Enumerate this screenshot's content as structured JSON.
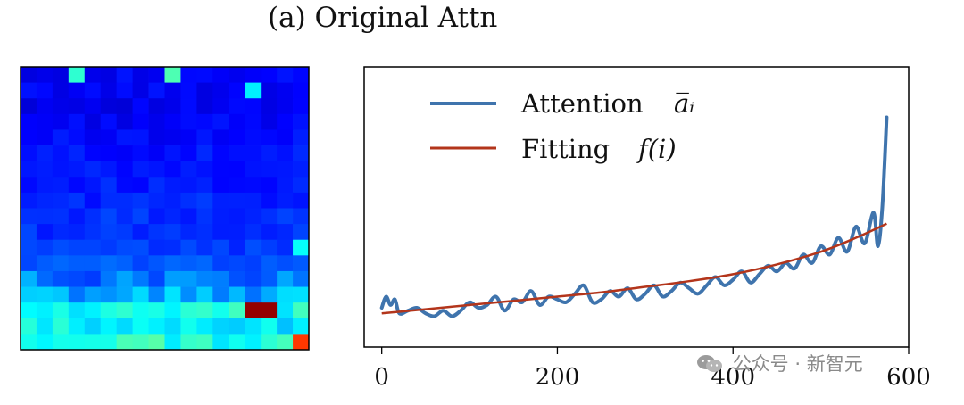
{
  "title": "(a) Original Attn",
  "watermark": "公众号 · 新智元",
  "chart_data": [
    {
      "type": "heatmap",
      "title": "",
      "colormap": "jet",
      "grid_rows": 18,
      "grid_cols": 18,
      "notes_hot_cells": [
        {
          "row": 0,
          "col": 3,
          "value": 0.42
        },
        {
          "row": 0,
          "col": 9,
          "value": 0.45
        },
        {
          "row": 1,
          "col": 14,
          "value": 0.36
        },
        {
          "row": 11,
          "col": 17,
          "value": 0.38
        },
        {
          "row": 15,
          "col": 14,
          "value": 0.98
        },
        {
          "row": 15,
          "col": 15,
          "value": 0.98
        },
        {
          "row": 17,
          "col": 17,
          "value": 0.82
        }
      ],
      "row_levels": [
        0.12,
        0.12,
        0.11,
        0.12,
        0.13,
        0.14,
        0.14,
        0.15,
        0.16,
        0.17,
        0.17,
        0.18,
        0.21,
        0.24,
        0.29,
        0.38,
        0.36,
        0.4
      ]
    },
    {
      "type": "line",
      "title": "",
      "xlabel": "",
      "ylabel": "",
      "xlim": [
        -20,
        600
      ],
      "ylim": [
        0,
        1
      ],
      "xticks": [
        "0",
        "200",
        "400",
        "600"
      ],
      "legend_position": "top-left",
      "grid": false,
      "series": [
        {
          "name": "Attention",
          "name_math": "a̅ᵢ",
          "color": "#3f74ad",
          "x": [
            0,
            5,
            10,
            15,
            20,
            30,
            40,
            50,
            60,
            70,
            80,
            90,
            100,
            110,
            120,
            130,
            140,
            150,
            160,
            170,
            180,
            190,
            200,
            210,
            220,
            230,
            240,
            250,
            260,
            270,
            280,
            290,
            300,
            310,
            320,
            330,
            340,
            350,
            360,
            370,
            380,
            390,
            400,
            410,
            420,
            430,
            440,
            450,
            460,
            470,
            480,
            490,
            500,
            510,
            520,
            530,
            540,
            550,
            560,
            565,
            570,
            575
          ],
          "y": [
            0.14,
            0.18,
            0.15,
            0.17,
            0.12,
            0.13,
            0.14,
            0.12,
            0.11,
            0.13,
            0.11,
            0.13,
            0.16,
            0.14,
            0.15,
            0.18,
            0.13,
            0.17,
            0.16,
            0.2,
            0.15,
            0.18,
            0.17,
            0.16,
            0.19,
            0.22,
            0.16,
            0.17,
            0.2,
            0.18,
            0.21,
            0.17,
            0.19,
            0.22,
            0.18,
            0.2,
            0.23,
            0.21,
            0.19,
            0.22,
            0.25,
            0.22,
            0.24,
            0.27,
            0.23,
            0.26,
            0.29,
            0.27,
            0.3,
            0.28,
            0.33,
            0.3,
            0.36,
            0.33,
            0.39,
            0.34,
            0.43,
            0.37,
            0.48,
            0.36,
            0.5,
            0.82
          ]
        },
        {
          "name": "Fitting",
          "name_math": "f(i)",
          "color": "#b3351b",
          "x": [
            0,
            50,
            100,
            150,
            200,
            250,
            300,
            350,
            400,
            450,
            500,
            540,
            575
          ],
          "y": [
            0.12,
            0.135,
            0.15,
            0.165,
            0.18,
            0.195,
            0.215,
            0.235,
            0.26,
            0.295,
            0.34,
            0.39,
            0.44
          ]
        }
      ]
    }
  ]
}
